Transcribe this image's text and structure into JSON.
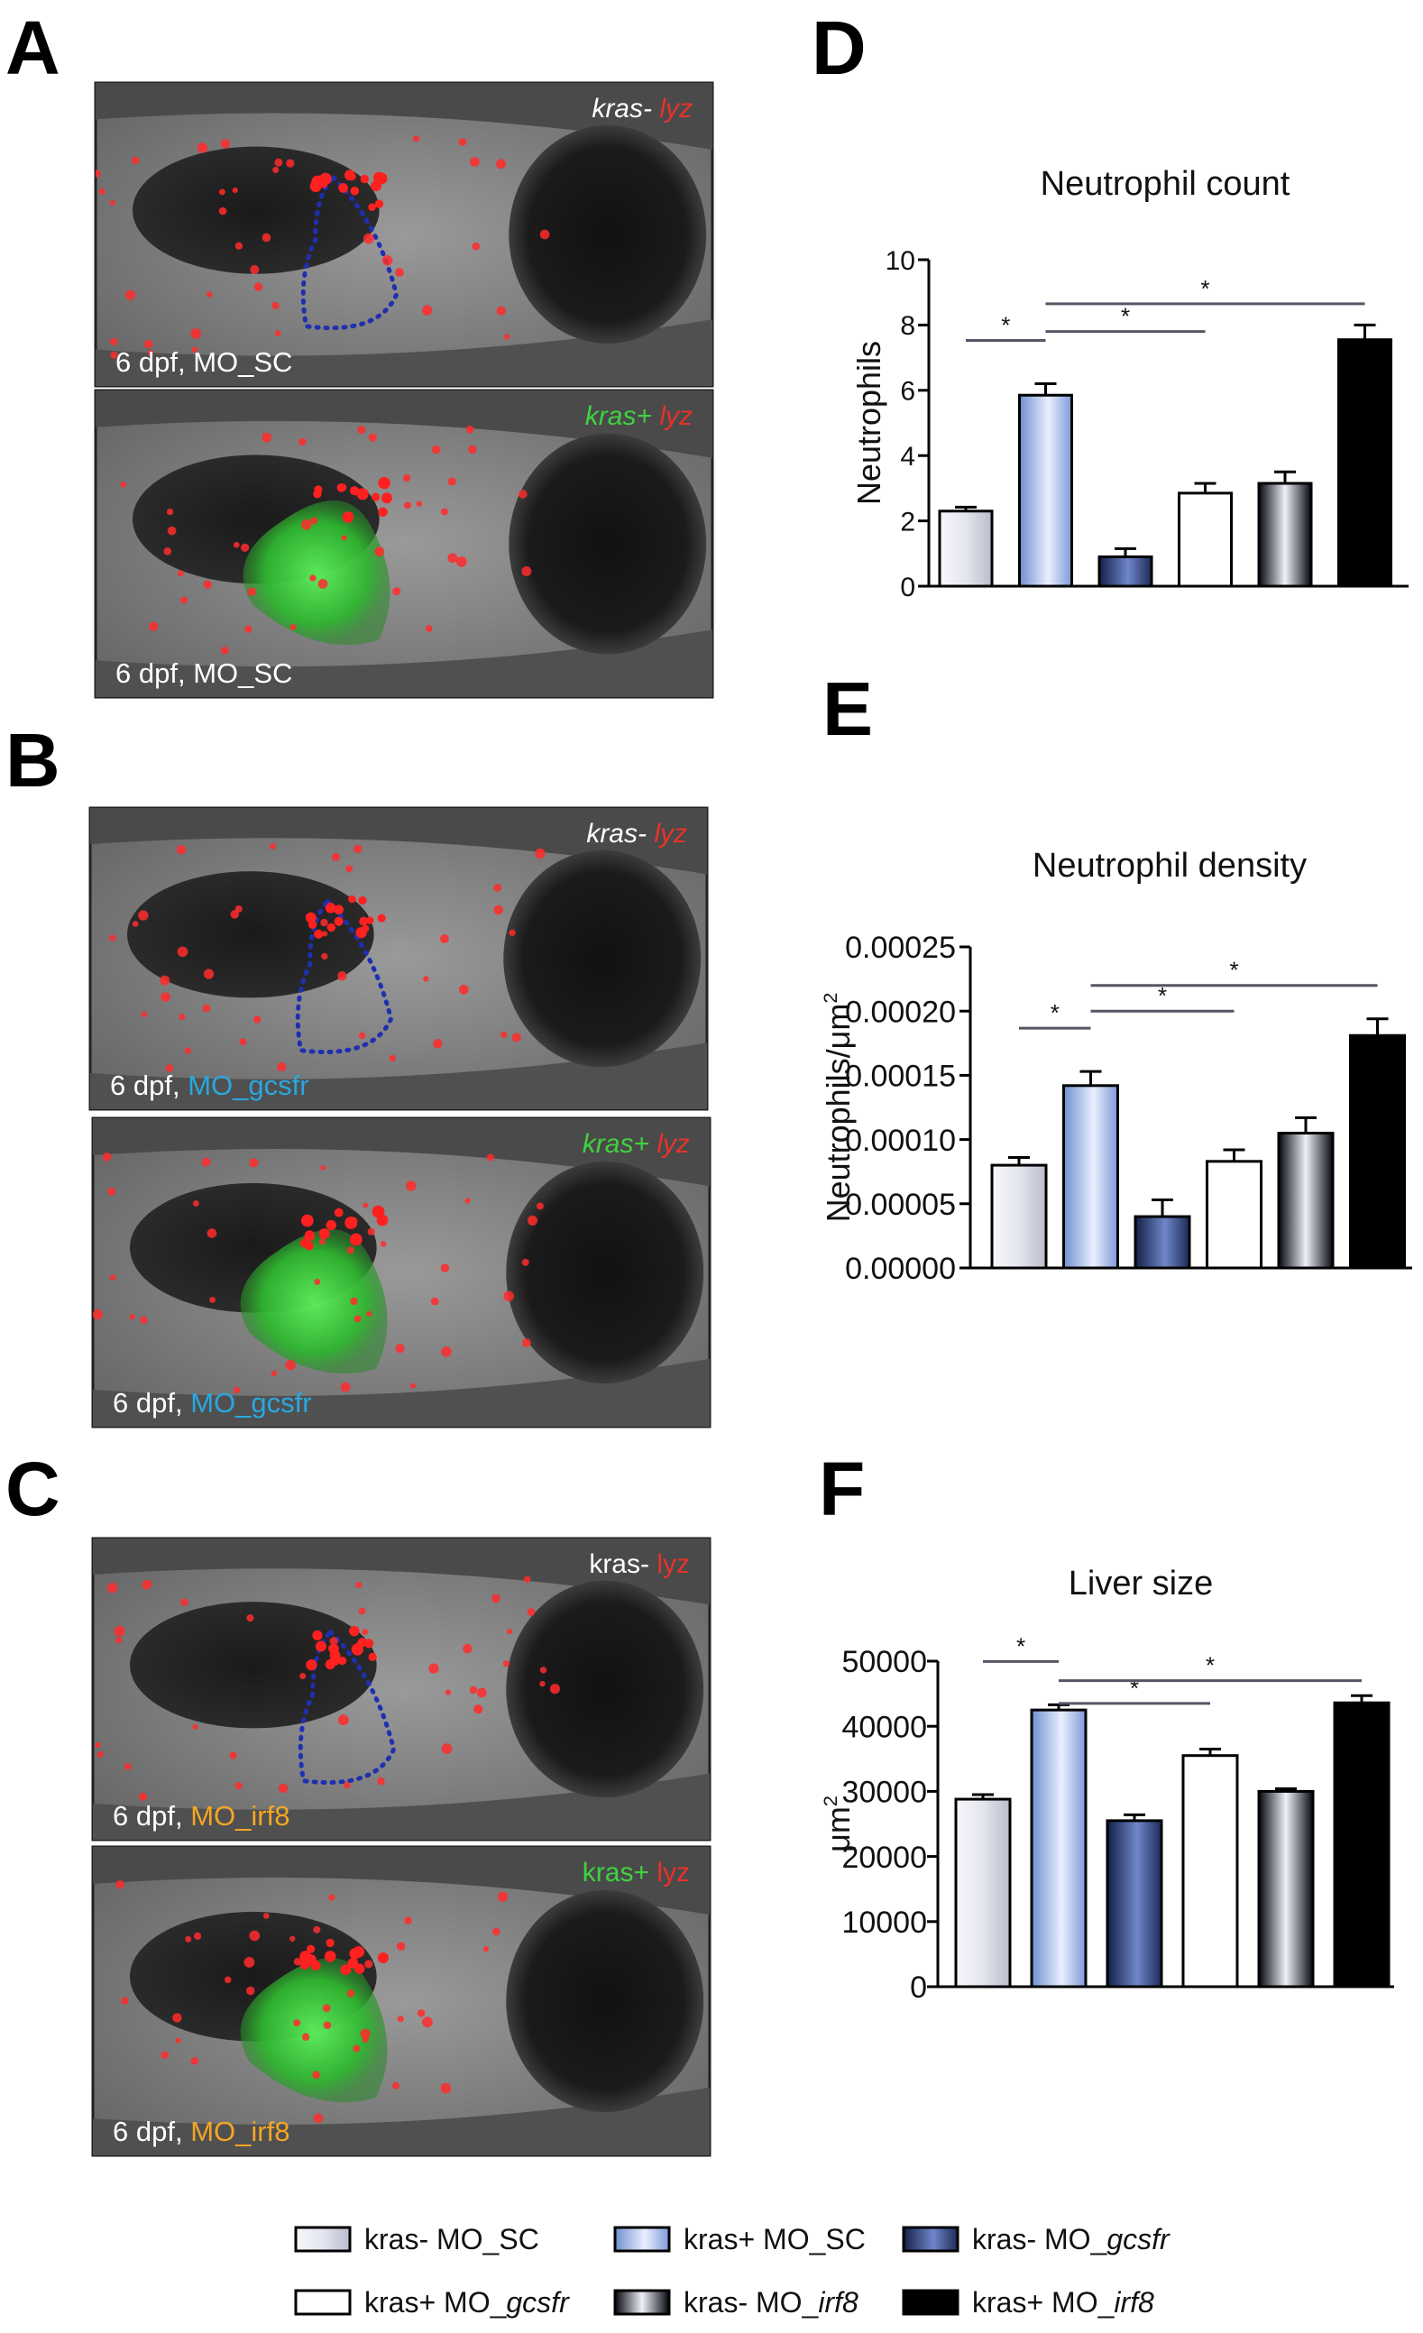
{
  "panel_letters": {
    "A": "A",
    "B": "B",
    "C": "C",
    "D": "D",
    "E": "E",
    "F": "F"
  },
  "micrographs": [
    {
      "panel": "A",
      "top_label": [
        {
          "text": "kras-",
          "color": "#ffffff",
          "italic": true
        },
        {
          "text": "lyz",
          "color": "#e8322a",
          "italic": true
        }
      ],
      "bottom_label": [
        {
          "text": "6 dpf, ",
          "color": "#ffffff"
        },
        {
          "text": "MO_SC",
          "color": "#ffffff"
        }
      ],
      "liver": "outline"
    },
    {
      "panel": "A",
      "top_label": [
        {
          "text": "kras+",
          "color": "#3fd23f",
          "italic": true
        },
        {
          "text": "lyz",
          "color": "#e8322a",
          "italic": true
        }
      ],
      "bottom_label": [
        {
          "text": "6 dpf, ",
          "color": "#ffffff"
        },
        {
          "text": "MO_SC",
          "color": "#ffffff"
        }
      ],
      "liver": "green"
    },
    {
      "panel": "B",
      "top_label": [
        {
          "text": "kras-",
          "color": "#ffffff",
          "italic": true
        },
        {
          "text": "lyz",
          "color": "#e8322a",
          "italic": true
        }
      ],
      "bottom_label": [
        {
          "text": "6 dpf, ",
          "color": "#ffffff"
        },
        {
          "text": "MO_gcsfr",
          "color": "#29a8e0"
        }
      ],
      "liver": "outline"
    },
    {
      "panel": "B",
      "top_label": [
        {
          "text": "kras+",
          "color": "#3fd23f",
          "italic": true
        },
        {
          "text": "lyz",
          "color": "#e8322a",
          "italic": true
        }
      ],
      "bottom_label": [
        {
          "text": "6 dpf, ",
          "color": "#ffffff"
        },
        {
          "text": "MO_gcsfr",
          "color": "#29a8e0"
        }
      ],
      "liver": "green"
    },
    {
      "panel": "C",
      "top_label": [
        {
          "text": "kras-",
          "color": "#ffffff",
          "italic": false
        },
        {
          "text": "lyz",
          "color": "#e8322a",
          "italic": false
        }
      ],
      "bottom_label": [
        {
          "text": "6 dpf, ",
          "color": "#ffffff"
        },
        {
          "text": "MO_irf8",
          "color": "#f5a623"
        }
      ],
      "liver": "outline"
    },
    {
      "panel": "C",
      "top_label": [
        {
          "text": "kras+",
          "color": "#3fd23f",
          "italic": false
        },
        {
          "text": "lyz",
          "color": "#e8322a",
          "italic": false
        }
      ],
      "bottom_label": [
        {
          "text": "6 dpf, ",
          "color": "#ffffff"
        },
        {
          "text": "MO_irf8",
          "color": "#f5a623"
        }
      ],
      "liver": "green"
    }
  ],
  "chart_data": [
    {
      "panel": "D",
      "type": "bar",
      "title": "Neutrophil count",
      "ylabel": "Neutrophils",
      "xlabel": "",
      "ylim": [
        0,
        10
      ],
      "yticks": [
        "0",
        "2",
        "4",
        "6",
        "8",
        "10"
      ],
      "categories": [
        "kras- MO_SC",
        "kras+ MO_SC",
        "kras- MO_gcsfr",
        "kras+ MO_gcsfr",
        "kras- MO_irf8",
        "kras+ MO_irf8"
      ],
      "values": [
        2.3,
        5.85,
        0.9,
        2.85,
        3.15,
        7.55
      ],
      "errors": [
        0.12,
        0.35,
        0.25,
        0.3,
        0.35,
        0.45
      ],
      "significance": [
        {
          "from": 0,
          "to": 1,
          "label": "*"
        },
        {
          "from": 1,
          "to": 3,
          "label": "*"
        },
        {
          "from": 1,
          "to": 5,
          "label": "*"
        }
      ]
    },
    {
      "panel": "E",
      "type": "bar",
      "title": "Neutrophil density",
      "ylabel": "Neutrophils/μm",
      "ylabel_sup": "2",
      "xlabel": "",
      "ylim": [
        0,
        0.00025
      ],
      "yticks": [
        "0.00000",
        "0.00005",
        "0.00010",
        "0.00015",
        "0.00020",
        "0.00025"
      ],
      "categories": [
        "kras- MO_SC",
        "kras+ MO_SC",
        "kras- MO_gcsfr",
        "kras+ MO_gcsfr",
        "kras- MO_irf8",
        "kras+ MO_irf8"
      ],
      "values": [
        8e-05,
        0.000142,
        4e-05,
        8.3e-05,
        0.000105,
        0.000181
      ],
      "errors": [
        6e-06,
        1.1e-05,
        1.3e-05,
        9e-06,
        1.2e-05,
        1.3e-05
      ],
      "significance": [
        {
          "from": 0,
          "to": 1,
          "label": "*"
        },
        {
          "from": 1,
          "to": 3,
          "label": "*"
        },
        {
          "from": 1,
          "to": 5,
          "label": "*"
        }
      ]
    },
    {
      "panel": "F",
      "type": "bar",
      "title": "Liver size",
      "ylabel": "μm",
      "ylabel_sup": "2",
      "xlabel": "",
      "ylim": [
        0,
        50000
      ],
      "yticks": [
        "0",
        "10000",
        "20000",
        "30000",
        "40000",
        "50000"
      ],
      "categories": [
        "kras- MO_SC",
        "kras+ MO_SC",
        "kras- MO_gcsfr",
        "kras+ MO_gcsfr",
        "kras- MO_irf8",
        "kras+ MO_irf8"
      ],
      "values": [
        28800,
        42500,
        25500,
        35500,
        30000,
        43600
      ],
      "errors": [
        700,
        800,
        900,
        1000,
        400,
        1100
      ],
      "significance": [
        {
          "from": 0,
          "to": 1,
          "label": "*"
        },
        {
          "from": 1,
          "to": 3,
          "label": "*"
        },
        {
          "from": 1,
          "to": 5,
          "label": "*"
        }
      ]
    }
  ],
  "legend": [
    {
      "pre": "kras- MO_",
      "ital": "",
      "plain": "SC",
      "fill": "light"
    },
    {
      "pre": "kras+ MO_",
      "ital": "",
      "plain": "SC",
      "fill": "blue"
    },
    {
      "pre": "kras- MO_",
      "ital": "gcsfr",
      "plain": "",
      "fill": "navy"
    },
    {
      "pre": "kras+ MO_",
      "ital": "gcsfr",
      "plain": "",
      "fill": "white"
    },
    {
      "pre": "kras- MO_",
      "ital": "irf8",
      "plain": "",
      "fill": "dark"
    },
    {
      "pre": "kras+ MO_",
      "ital": "irf8",
      "plain": "",
      "fill": "black"
    }
  ]
}
